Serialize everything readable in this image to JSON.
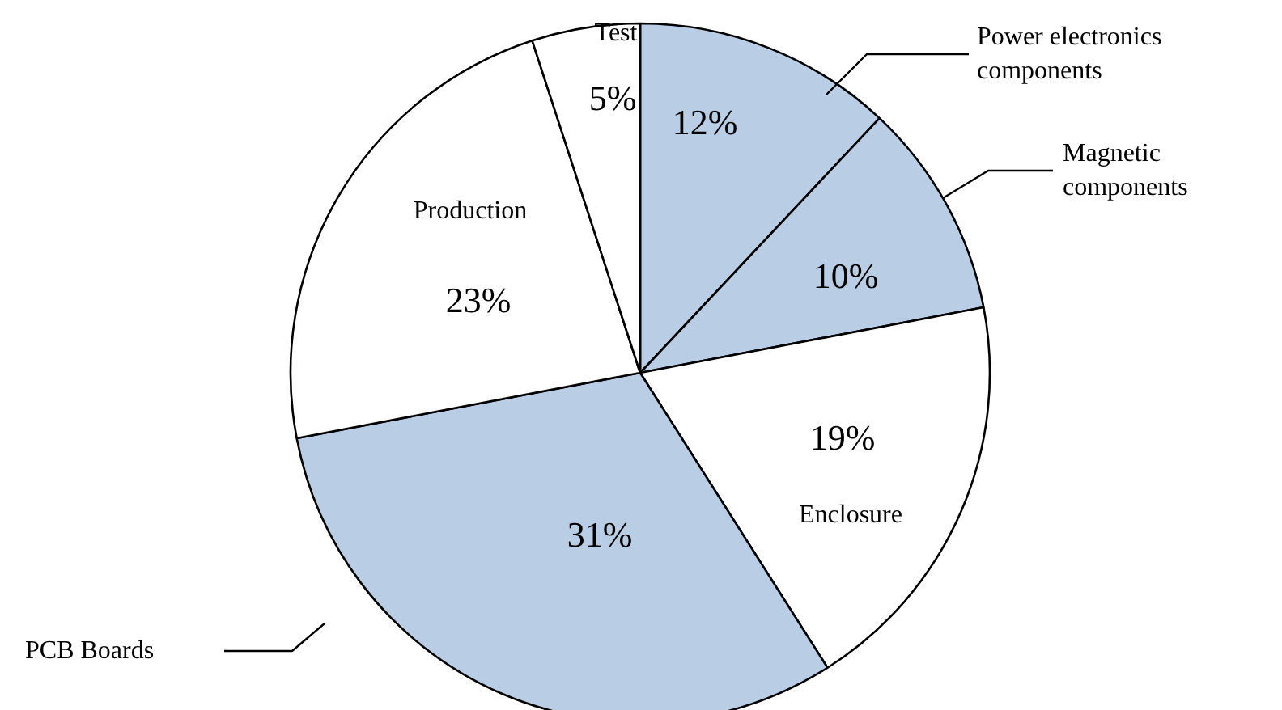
{
  "chart_data": {
    "type": "pie",
    "categories": [
      "Power electronics components",
      "Magnetic components",
      "Enclosure",
      "PCB Boards",
      "Production",
      "Test"
    ],
    "values": [
      12,
      10,
      19,
      31,
      23,
      5
    ],
    "value_labels": [
      "12%",
      "10%",
      "19%",
      "31%",
      "23%",
      "5%"
    ],
    "colors": [
      "#b9cde5",
      "#b9cde5",
      "#ffffff",
      "#b9cde5",
      "#ffffff",
      "#ffffff"
    ]
  }
}
